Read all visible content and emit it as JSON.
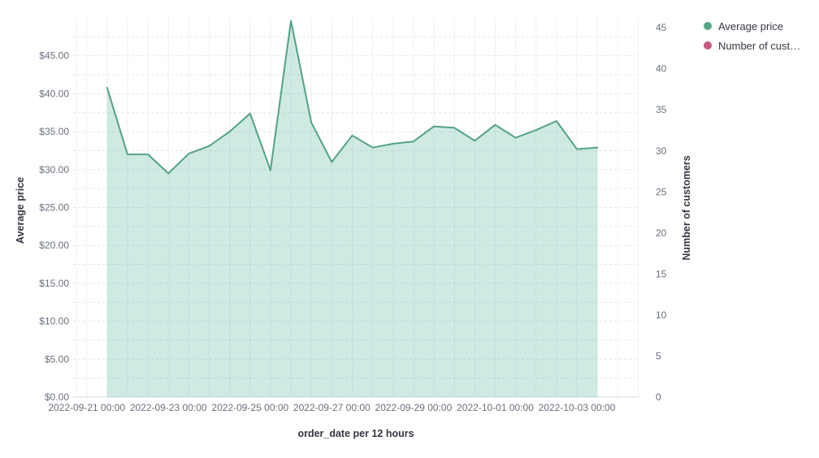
{
  "page": {
    "background_color": "#ffffff"
  },
  "legend": {
    "position": "top-right",
    "items": [
      {
        "label": "Average price",
        "color": "#55a687"
      },
      {
        "label": "Number of cust…",
        "color": "#c6577e"
      }
    ]
  },
  "chart_data": {
    "type": "area",
    "title": "",
    "xlabel": "order_date per 12 hours",
    "ylabel_left": "Average price",
    "ylabel_right": "Number of customers",
    "x": [
      "2022-09-21 12:00",
      "2022-09-22 00:00",
      "2022-09-22 12:00",
      "2022-09-23 00:00",
      "2022-09-23 12:00",
      "2022-09-24 00:00",
      "2022-09-24 12:00",
      "2022-09-25 00:00",
      "2022-09-25 12:00",
      "2022-09-26 00:00",
      "2022-09-26 12:00",
      "2022-09-27 00:00",
      "2022-09-27 12:00",
      "2022-09-28 00:00",
      "2022-09-28 12:00",
      "2022-09-29 00:00",
      "2022-09-29 12:00",
      "2022-09-30 00:00",
      "2022-09-30 12:00",
      "2022-10-01 00:00",
      "2022-10-01 12:00",
      "2022-10-02 00:00",
      "2022-10-02 12:00",
      "2022-10-03 00:00",
      "2022-10-03 12:00"
    ],
    "series": [
      {
        "name": "Average price",
        "axis": "left",
        "line_color": "#53a283",
        "fill_color": "rgba(84, 179, 153, 0.28)",
        "values": [
          40.8,
          32.0,
          32.0,
          29.5,
          32.1,
          33.1,
          35.0,
          37.4,
          29.9,
          49.6,
          36.2,
          31.0,
          34.5,
          32.9,
          33.4,
          33.7,
          35.7,
          35.5,
          33.8,
          35.9,
          34.2,
          35.2,
          36.4,
          32.7,
          32.9
        ]
      },
      {
        "name": "Number of customers",
        "axis": "right",
        "line_color": "#c6577e",
        "values": []
      }
    ],
    "x_tick_labels": [
      "2022-09-21 00:00",
      "2022-09-23 00:00",
      "2022-09-25 00:00",
      "2022-09-27 00:00",
      "2022-09-29 00:00",
      "2022-10-01 00:00",
      "2022-10-03 00:00"
    ],
    "y_left_tick_values": [
      0,
      5,
      10,
      15,
      20,
      25,
      30,
      35,
      40,
      45
    ],
    "y_left_tick_labels": [
      "$0.00",
      "$5.00",
      "$10.00",
      "$15.00",
      "$20.00",
      "$25.00",
      "$30.00",
      "$35.00",
      "$40.00",
      "$45.00"
    ],
    "y_right_tick_values": [
      0,
      5,
      10,
      15,
      20,
      25,
      30,
      35,
      40,
      45
    ],
    "y_right_tick_labels": [
      "0",
      "5",
      "10",
      "15",
      "20",
      "25",
      "30",
      "35",
      "40",
      "45"
    ],
    "ylim_left": [
      0,
      50
    ],
    "ylim_right": [
      0,
      46.2
    ],
    "grid": {
      "horizontal_style": "dashed",
      "horizontal_step": 2.5,
      "vertical_style": "solid",
      "vertical_step": "12 hours",
      "vertical_color": "#edf0f3",
      "horizontal_color": "#e0e4ea",
      "baseline_color": "#d3dae6"
    },
    "tick_label_color": "#69707d"
  }
}
